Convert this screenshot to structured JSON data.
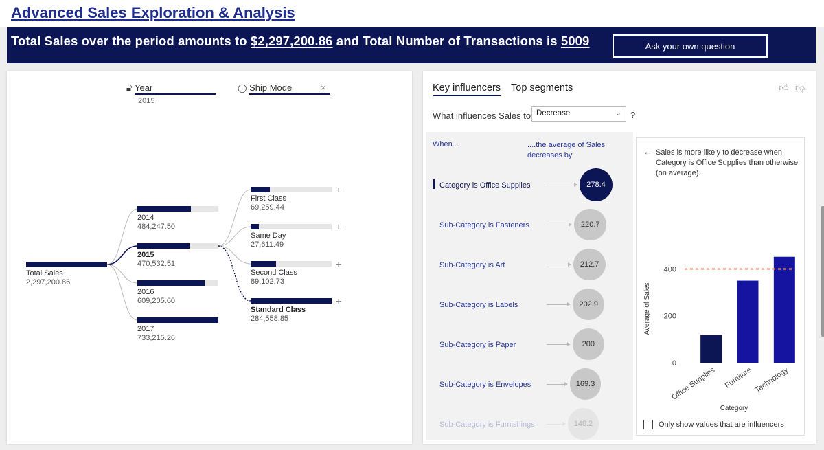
{
  "page": {
    "title": "Advanced Sales Exploration & Analysis"
  },
  "banner": {
    "prefix": "Total Sales over the period amounts to ",
    "total_sales": "$2,297,200.86",
    "middle": " and Total Number of Transactions is ",
    "transactions": "5009",
    "ask_button": "Ask your own question"
  },
  "tree": {
    "levels": [
      {
        "name": "Year",
        "selected": "2015",
        "icon": "lock-icon"
      },
      {
        "name": "Ship Mode",
        "icon": "lightbulb-icon",
        "close": "×"
      }
    ],
    "root": {
      "label": "Total Sales",
      "value": "2,297,200.86",
      "fraction": 1.0
    },
    "years": [
      {
        "label": "2014",
        "value": "484,247.50",
        "fraction": 0.66
      },
      {
        "label": "2015",
        "value": "470,532.51",
        "fraction": 0.64,
        "selected": true
      },
      {
        "label": "2016",
        "value": "609,205.60",
        "fraction": 0.83
      },
      {
        "label": "2017",
        "value": "733,215.26",
        "fraction": 1.0
      }
    ],
    "ship_modes": [
      {
        "label": "First Class",
        "value": "69,259.44",
        "fraction": 0.24
      },
      {
        "label": "Same Day",
        "value": "27,611.49",
        "fraction": 0.1
      },
      {
        "label": "Second Class",
        "value": "89,102.73",
        "fraction": 0.31
      },
      {
        "label": "Standard Class",
        "value": "284,558.85",
        "fraction": 1.0,
        "bold": true
      }
    ],
    "plus": "+"
  },
  "influencers": {
    "tabs": [
      "Key influencers",
      "Top segments"
    ],
    "question": "What influences Sales to",
    "selection": "Decrease",
    "qmark": "?",
    "when_label": "When...",
    "avg_label": "....the average of Sales decreases by",
    "rows": [
      {
        "label": "Category is Office Supplies",
        "value": "278.4",
        "selected": true
      },
      {
        "label": "Sub-Category is Fasteners",
        "value": "220.7"
      },
      {
        "label": "Sub-Category is Art",
        "value": "212.7"
      },
      {
        "label": "Sub-Category is Labels",
        "value": "202.9"
      },
      {
        "label": "Sub-Category is Paper",
        "value": "200"
      },
      {
        "label": "Sub-Category is Envelopes",
        "value": "169.3"
      },
      {
        "label": "Sub-Category is Furnishings",
        "value": "148.2",
        "faded": true
      }
    ],
    "detail_text": "Sales is more likely to decrease when Category is Office Supplies than otherwise (on average).",
    "only_influencers": "Only show values that are influencers",
    "colors": {
      "selected": "#0d1654",
      "bar": "#1414a0",
      "reference": "#f0906a"
    }
  },
  "chart_data": {
    "type": "bar",
    "categories": [
      "Office Supplies",
      "Furniture",
      "Technology"
    ],
    "values": [
      119,
      350,
      452
    ],
    "reference_line": 400,
    "xlabel": "Category",
    "ylabel": "Average of Sales",
    "yticks": [
      0,
      200,
      400
    ],
    "ylim": [
      0,
      460
    ]
  }
}
